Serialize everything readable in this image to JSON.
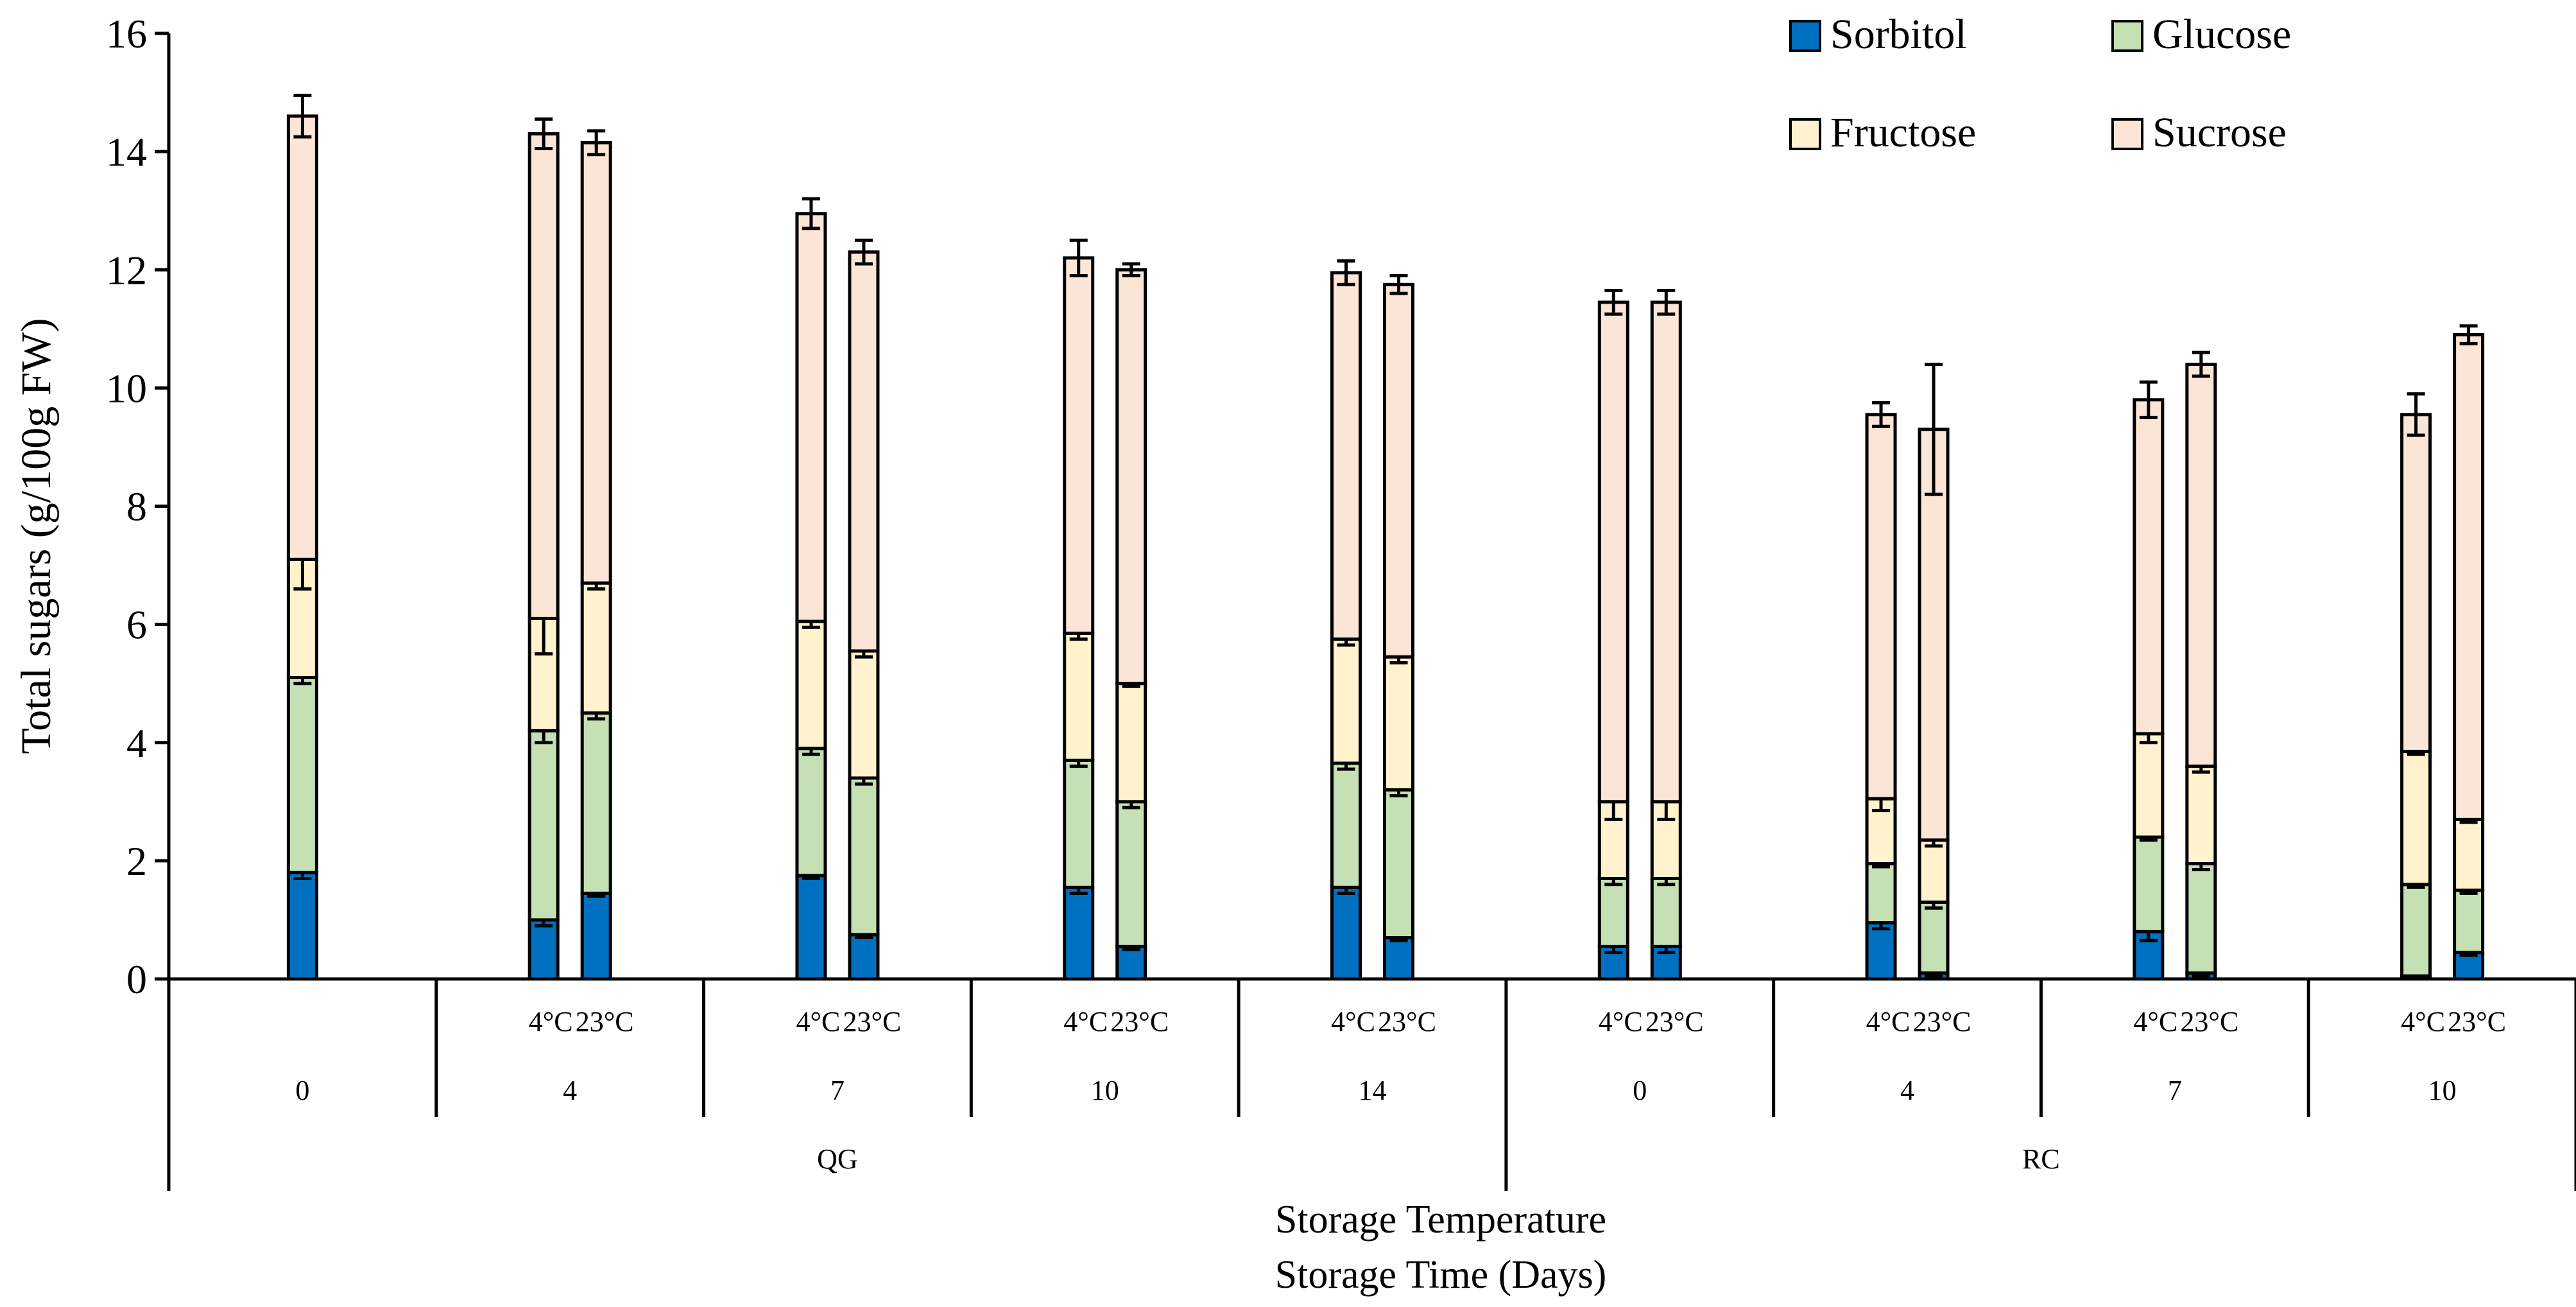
{
  "chart_data": {
    "type": "bar",
    "stacked": true,
    "title": "",
    "ylabel": "Total sugars (g/100g FW)",
    "xlabel_lines": [
      "Storage Temperature",
      "Storage Time (Days)"
    ],
    "ylim": [
      0,
      16
    ],
    "yticks": [
      "0",
      "2",
      "4",
      "6",
      "8",
      "10",
      "12",
      "14",
      "16"
    ],
    "legend_position": "top-right",
    "series": [
      {
        "name": "Sorbitol",
        "color": "#0070C0"
      },
      {
        "name": "Glucose",
        "color": "#C5E0B4"
      },
      {
        "name": "Fructose",
        "color": "#FFF2CC"
      },
      {
        "name": "Sucrose",
        "color": "#FBE5D6"
      }
    ],
    "bars": [
      {
        "variety": "QG",
        "day": "0",
        "temp": "",
        "values": [
          1.8,
          3.3,
          2.0,
          7.5
        ],
        "errors": [
          0.1,
          0.1,
          0.5,
          0.35
        ]
      },
      {
        "variety": "QG",
        "day": "4",
        "temp": "4°C",
        "values": [
          1.0,
          3.2,
          1.9,
          8.2
        ],
        "errors": [
          0.1,
          0.2,
          0.6,
          0.25
        ]
      },
      {
        "variety": "QG",
        "day": "4",
        "temp": "23°C",
        "values": [
          1.45,
          3.05,
          2.2,
          7.45
        ],
        "errors": [
          0.05,
          0.1,
          0.1,
          0.2
        ]
      },
      {
        "variety": "QG",
        "day": "7",
        "temp": "4°C",
        "values": [
          1.75,
          2.15,
          2.15,
          6.9
        ],
        "errors": [
          0.05,
          0.1,
          0.1,
          0.25
        ]
      },
      {
        "variety": "QG",
        "day": "7",
        "temp": "23°C",
        "values": [
          0.75,
          2.65,
          2.15,
          6.75
        ],
        "errors": [
          0.05,
          0.1,
          0.1,
          0.2
        ]
      },
      {
        "variety": "QG",
        "day": "10",
        "temp": "4°C",
        "values": [
          1.55,
          2.15,
          2.15,
          6.35
        ],
        "errors": [
          0.1,
          0.1,
          0.1,
          0.3
        ]
      },
      {
        "variety": "QG",
        "day": "10",
        "temp": "23°C",
        "values": [
          0.55,
          2.45,
          2.0,
          7.0
        ],
        "errors": [
          0.05,
          0.1,
          0.05,
          0.1
        ]
      },
      {
        "variety": "QG",
        "day": "14",
        "temp": "4°C",
        "values": [
          1.55,
          2.1,
          2.1,
          6.2
        ],
        "errors": [
          0.1,
          0.1,
          0.1,
          0.2
        ]
      },
      {
        "variety": "QG",
        "day": "14",
        "temp": "23°C",
        "values": [
          0.7,
          2.5,
          2.25,
          6.3
        ],
        "errors": [
          0.05,
          0.1,
          0.1,
          0.15
        ]
      },
      {
        "variety": "RC",
        "day": "0",
        "temp": "4°C",
        "values": [
          0.55,
          1.15,
          1.3,
          8.45
        ],
        "errors": [
          0.1,
          0.1,
          0.3,
          0.2
        ]
      },
      {
        "variety": "RC",
        "day": "0",
        "temp": "23°C",
        "values": [
          0.55,
          1.15,
          1.3,
          8.45
        ],
        "errors": [
          0.1,
          0.1,
          0.3,
          0.2
        ]
      },
      {
        "variety": "RC",
        "day": "4",
        "temp": "4°C",
        "values": [
          0.95,
          1.0,
          1.1,
          6.5
        ],
        "errors": [
          0.1,
          0.05,
          0.2,
          0.2
        ]
      },
      {
        "variety": "RC",
        "day": "4",
        "temp": "23°C",
        "values": [
          0.1,
          1.2,
          1.05,
          6.95
        ],
        "errors": [
          0.05,
          0.1,
          0.1,
          1.1
        ]
      },
      {
        "variety": "RC",
        "day": "7",
        "temp": "4°C",
        "values": [
          0.8,
          1.6,
          1.75,
          5.65
        ],
        "errors": [
          0.15,
          0.05,
          0.15,
          0.3
        ]
      },
      {
        "variety": "RC",
        "day": "7",
        "temp": "23°C",
        "values": [
          0.1,
          1.85,
          1.65,
          6.8
        ],
        "errors": [
          0.05,
          0.1,
          0.1,
          0.2
        ]
      },
      {
        "variety": "RC",
        "day": "10",
        "temp": "4°C",
        "values": [
          0.05,
          1.55,
          2.25,
          5.7
        ],
        "errors": [
          0.02,
          0.05,
          0.05,
          0.35
        ]
      },
      {
        "variety": "RC",
        "day": "10",
        "temp": "23°C",
        "values": [
          0.45,
          1.05,
          1.2,
          8.2
        ],
        "errors": [
          0.05,
          0.05,
          0.05,
          0.15
        ]
      }
    ],
    "groups": [
      {
        "day": "0",
        "variety": "QG",
        "temp_labels": []
      },
      {
        "day": "4",
        "variety": "QG",
        "temp_labels": [
          "4°C",
          "23°C"
        ]
      },
      {
        "day": "7",
        "variety": "QG",
        "temp_labels": [
          "4°C",
          "23°C"
        ]
      },
      {
        "day": "10",
        "variety": "QG",
        "temp_labels": [
          "4°C",
          "23°C"
        ]
      },
      {
        "day": "14",
        "variety": "QG",
        "temp_labels": [
          "4°C",
          "23°C"
        ]
      },
      {
        "day": "0",
        "variety": "RC",
        "temp_labels": [
          "4°C",
          "23°C"
        ]
      },
      {
        "day": "4",
        "variety": "RC",
        "temp_labels": [
          "4°C",
          "23°C"
        ]
      },
      {
        "day": "7",
        "variety": "RC",
        "temp_labels": [
          "4°C",
          "23°C"
        ]
      },
      {
        "day": "10",
        "variety": "RC",
        "temp_labels": [
          "4°C",
          "23°C"
        ]
      }
    ],
    "varieties": [
      "QG",
      "RC"
    ]
  }
}
